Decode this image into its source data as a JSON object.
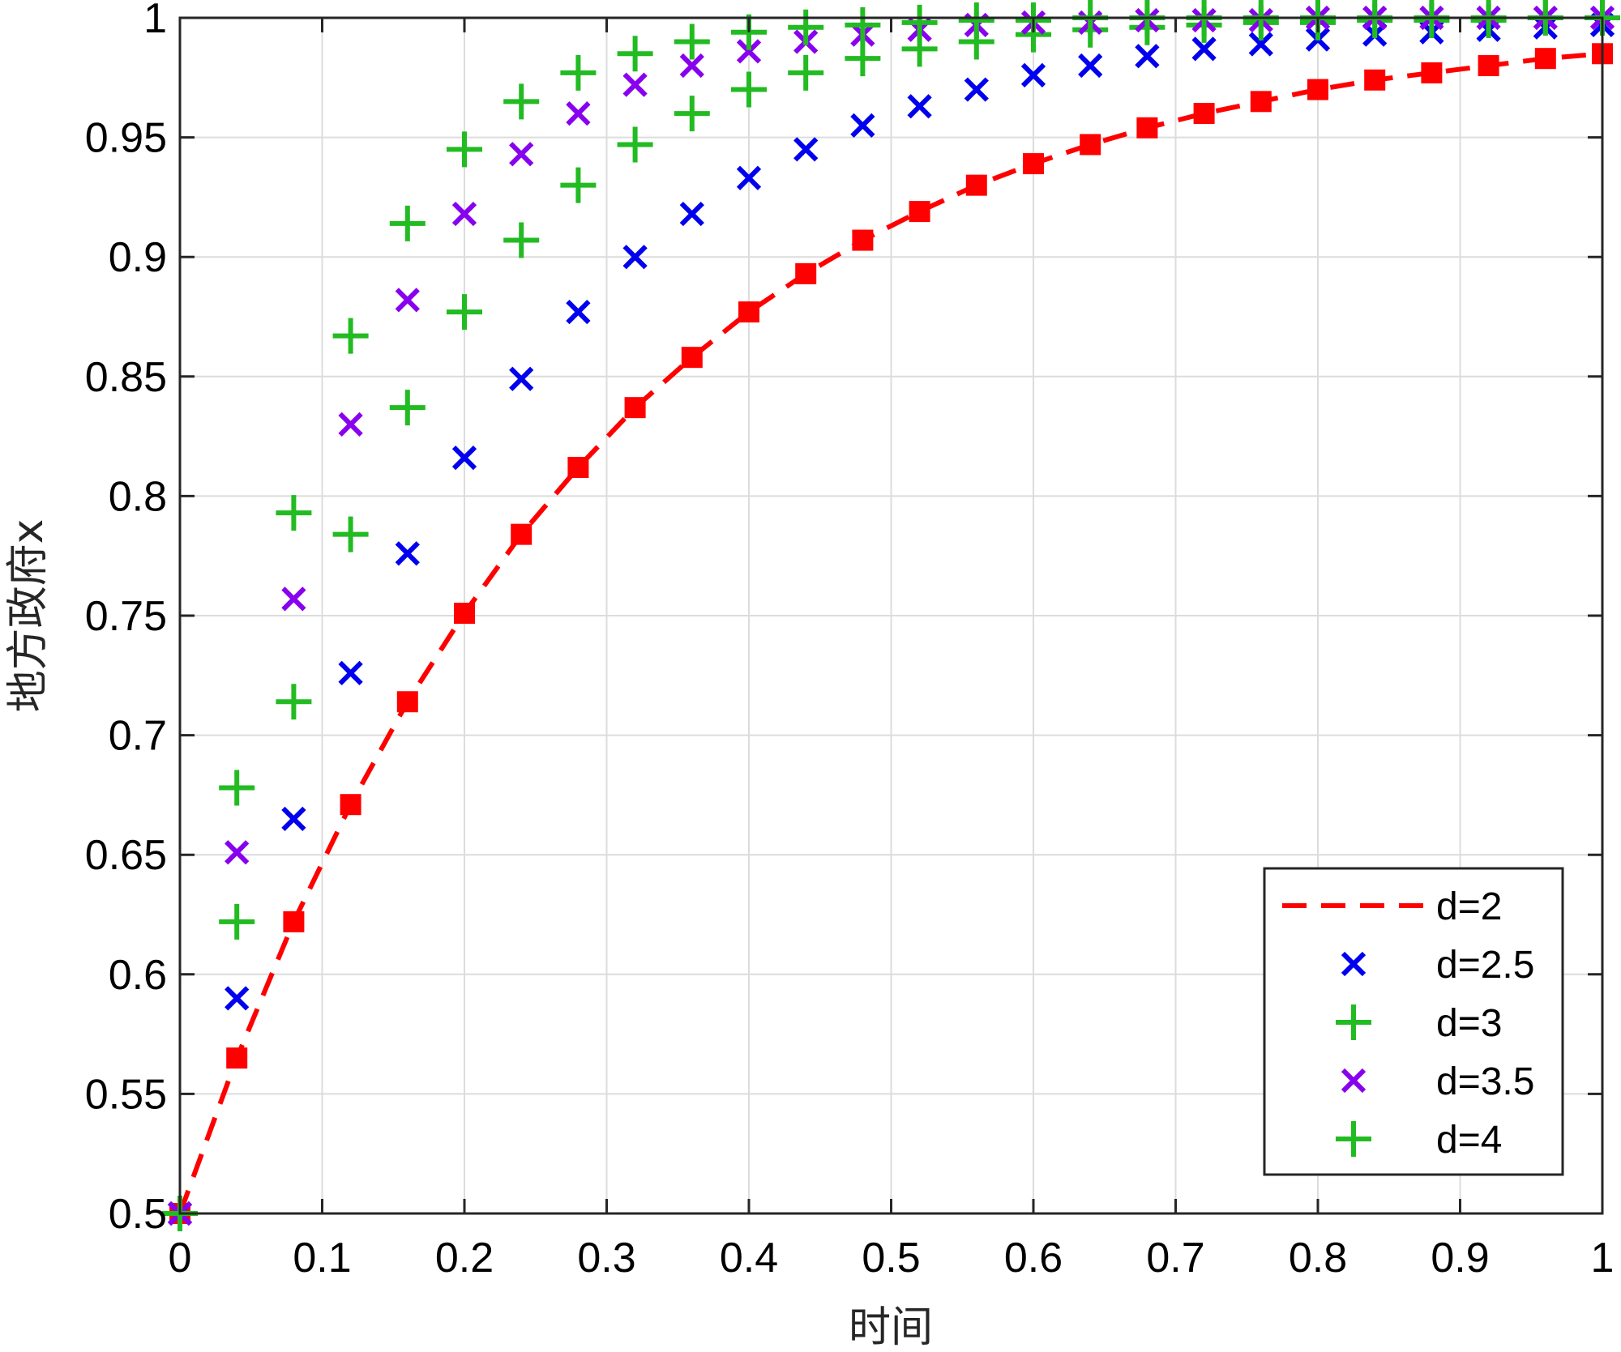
{
  "chart_data": {
    "type": "line",
    "title": "",
    "xlabel": "时间",
    "ylabel": "地方政府x",
    "xlim": [
      0,
      1
    ],
    "ylim": [
      0.5,
      1
    ],
    "x_ticks": [
      "0",
      "0.1",
      "0.2",
      "0.3",
      "0.4",
      "0.5",
      "0.6",
      "0.7",
      "0.8",
      "0.9",
      "1"
    ],
    "y_ticks": [
      "0.5",
      "0.55",
      "0.6",
      "0.65",
      "0.7",
      "0.75",
      "0.8",
      "0.85",
      "0.9",
      "0.95",
      "1"
    ],
    "grid": true,
    "legend_position": "bottom-right",
    "x": [
      0,
      0.04,
      0.08,
      0.12,
      0.16,
      0.2,
      0.24,
      0.28,
      0.32,
      0.36,
      0.4,
      0.44,
      0.48,
      0.52,
      0.56,
      0.6,
      0.64,
      0.68,
      0.72,
      0.76,
      0.8,
      0.84,
      0.88,
      0.92,
      0.96,
      1.0
    ],
    "series": [
      {
        "name": "d=2",
        "color": "#ff0000",
        "line": "dashed",
        "marker": "square",
        "values": [
          0.5,
          0.565,
          0.622,
          0.671,
          0.714,
          0.751,
          0.784,
          0.812,
          0.837,
          0.858,
          0.877,
          0.893,
          0.907,
          0.919,
          0.93,
          0.939,
          0.947,
          0.954,
          0.96,
          0.965,
          0.97,
          0.974,
          0.977,
          0.98,
          0.983,
          0.985
        ]
      },
      {
        "name": "d=2.5",
        "color": "#0000ee",
        "line": "none",
        "marker": "x",
        "values": [
          0.5,
          0.59,
          0.665,
          0.726,
          0.776,
          0.816,
          0.849,
          0.877,
          0.9,
          0.918,
          0.933,
          0.945,
          0.955,
          0.963,
          0.97,
          0.976,
          0.98,
          0.984,
          0.987,
          0.989,
          0.991,
          0.993,
          0.994,
          0.995,
          0.996,
          0.997
        ]
      },
      {
        "name": "d=3",
        "color": "#22bb22",
        "line": "none",
        "marker": "plus",
        "values": [
          0.5,
          0.622,
          0.714,
          0.784,
          0.837,
          0.877,
          0.907,
          0.93,
          0.947,
          0.96,
          0.97,
          0.977,
          0.983,
          0.987,
          0.99,
          0.993,
          0.995,
          0.996,
          0.997,
          0.998,
          0.998,
          0.999,
          0.999,
          0.999,
          1.0,
          1.0
        ]
      },
      {
        "name": "d=3.5",
        "color": "#8800ee",
        "line": "none",
        "marker": "x",
        "values": [
          0.5,
          0.651,
          0.757,
          0.83,
          0.882,
          0.918,
          0.943,
          0.96,
          0.972,
          0.98,
          0.986,
          0.99,
          0.993,
          0.995,
          0.997,
          0.998,
          0.998,
          0.999,
          0.999,
          0.999,
          1.0,
          1.0,
          1.0,
          1.0,
          1.0,
          1.0
        ]
      },
      {
        "name": "d=4",
        "color": "#22bb22",
        "line": "none",
        "marker": "plus",
        "values": [
          0.5,
          0.678,
          0.793,
          0.867,
          0.914,
          0.945,
          0.965,
          0.977,
          0.985,
          0.99,
          0.994,
          0.996,
          0.997,
          0.998,
          0.999,
          0.999,
          1.0,
          1.0,
          1.0,
          1.0,
          1.0,
          1.0,
          1.0,
          1.0,
          1.0,
          1.0
        ]
      }
    ]
  }
}
